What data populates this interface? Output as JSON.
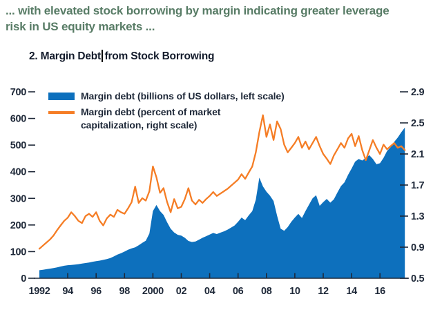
{
  "caption": {
    "lines": [
      "... with elevated stock borrowing by margin indicating greater leverage",
      "risk in US equity markets ..."
    ]
  },
  "chart_title": {
    "prefix": "2. Margin Debt",
    "suffix": "from Stock Borrowing"
  },
  "legend": {
    "items": [
      {
        "swatch": "area",
        "color": "#0d70bd",
        "lines": [
          "Margin debt (billions of US dollars, left scale)"
        ]
      },
      {
        "swatch": "line",
        "color": "#f57d25",
        "lines": [
          "Margin debt (percent of market",
          "capitalization, right scale)"
        ]
      }
    ]
  },
  "colors": {
    "margin_debt_area": "#0d70bd",
    "margin_debt_pct_line": "#f57d25",
    "axis_text": "#1e2838",
    "caption_green": "#587c66"
  },
  "chart_data": {
    "type": "area+line",
    "title": "2. Margin Debt from Stock Borrowing",
    "grid": false,
    "legend_position": "top-left",
    "x_start": 1992.0,
    "x_step": 0.25,
    "x_unit": "year (quarterly samples)",
    "x_ticks": {
      "years": [
        1992,
        1994,
        1996,
        1998,
        2000,
        2002,
        2004,
        2006,
        2008,
        2010,
        2012,
        2014,
        2016
      ],
      "labels": [
        "1992",
        "94",
        "96",
        "98",
        "2000",
        "02",
        "04",
        "06",
        "08",
        "10",
        "12",
        "14",
        "16"
      ],
      "tick_mark_years": [
        1994,
        1996,
        1998,
        2000,
        2002,
        2004,
        2006,
        2008,
        2010,
        2012,
        2014,
        2016
      ]
    },
    "left_axis": {
      "label": "Margin debt (billions of US dollars, left scale)",
      "range": [
        0,
        700
      ],
      "ticks": [
        0,
        100,
        200,
        300,
        400,
        500,
        600,
        700
      ]
    },
    "right_axis": {
      "label": "Margin debt (percent of market capitalization, right scale)",
      "range": [
        0.5,
        2.9
      ],
      "ticks": [
        0.5,
        0.9,
        1.3,
        1.7,
        2.1,
        2.5,
        2.9
      ]
    },
    "series": [
      {
        "name": "Margin debt (billions of US dollars, left scale)",
        "type": "area",
        "axis": "left",
        "color": "#0d70bd",
        "values": [
          30,
          32,
          34,
          36,
          38,
          41,
          44,
          47,
          49,
          50,
          51,
          53,
          55,
          57,
          59,
          62,
          64,
          66,
          69,
          72,
          76,
          82,
          89,
          94,
          100,
          107,
          112,
          116,
          124,
          133,
          141,
          168,
          252,
          275,
          252,
          238,
          210,
          186,
          172,
          163,
          160,
          152,
          140,
          136,
          138,
          145,
          152,
          158,
          164,
          170,
          166,
          171,
          176,
          182,
          190,
          198,
          212,
          228,
          218,
          236,
          252,
          295,
          378,
          345,
          325,
          310,
          290,
          235,
          186,
          178,
          192,
          212,
          228,
          242,
          226,
          252,
          276,
          300,
          312,
          272,
          286,
          298,
          284,
          296,
          322,
          346,
          360,
          388,
          412,
          438,
          448,
          442,
          452,
          462,
          448,
          428,
          432,
          452,
          478,
          492,
          512,
          528,
          548,
          566
        ]
      },
      {
        "name": "Margin debt (percent of market capitalization, right scale)",
        "type": "line",
        "axis": "right",
        "color": "#f57d25",
        "values": [
          0.88,
          0.92,
          0.96,
          1.0,
          1.05,
          1.12,
          1.18,
          1.24,
          1.28,
          1.35,
          1.3,
          1.24,
          1.21,
          1.3,
          1.33,
          1.29,
          1.35,
          1.24,
          1.18,
          1.27,
          1.32,
          1.29,
          1.38,
          1.35,
          1.33,
          1.4,
          1.48,
          1.68,
          1.47,
          1.53,
          1.5,
          1.62,
          1.94,
          1.8,
          1.6,
          1.66,
          1.48,
          1.35,
          1.52,
          1.4,
          1.42,
          1.52,
          1.66,
          1.5,
          1.45,
          1.51,
          1.47,
          1.52,
          1.56,
          1.61,
          1.56,
          1.59,
          1.62,
          1.65,
          1.69,
          1.73,
          1.77,
          1.84,
          1.78,
          1.86,
          1.94,
          2.12,
          2.38,
          2.6,
          2.32,
          2.48,
          2.28,
          2.52,
          2.42,
          2.22,
          2.12,
          2.18,
          2.24,
          2.32,
          2.18,
          2.26,
          2.16,
          2.24,
          2.32,
          2.2,
          2.1,
          2.04,
          1.97,
          2.08,
          2.16,
          2.24,
          2.18,
          2.3,
          2.36,
          2.2,
          2.33,
          2.15,
          2.02,
          2.15,
          2.28,
          2.18,
          2.1,
          2.22,
          2.16,
          2.2,
          2.24,
          2.18,
          2.2,
          2.15
        ]
      }
    ]
  }
}
